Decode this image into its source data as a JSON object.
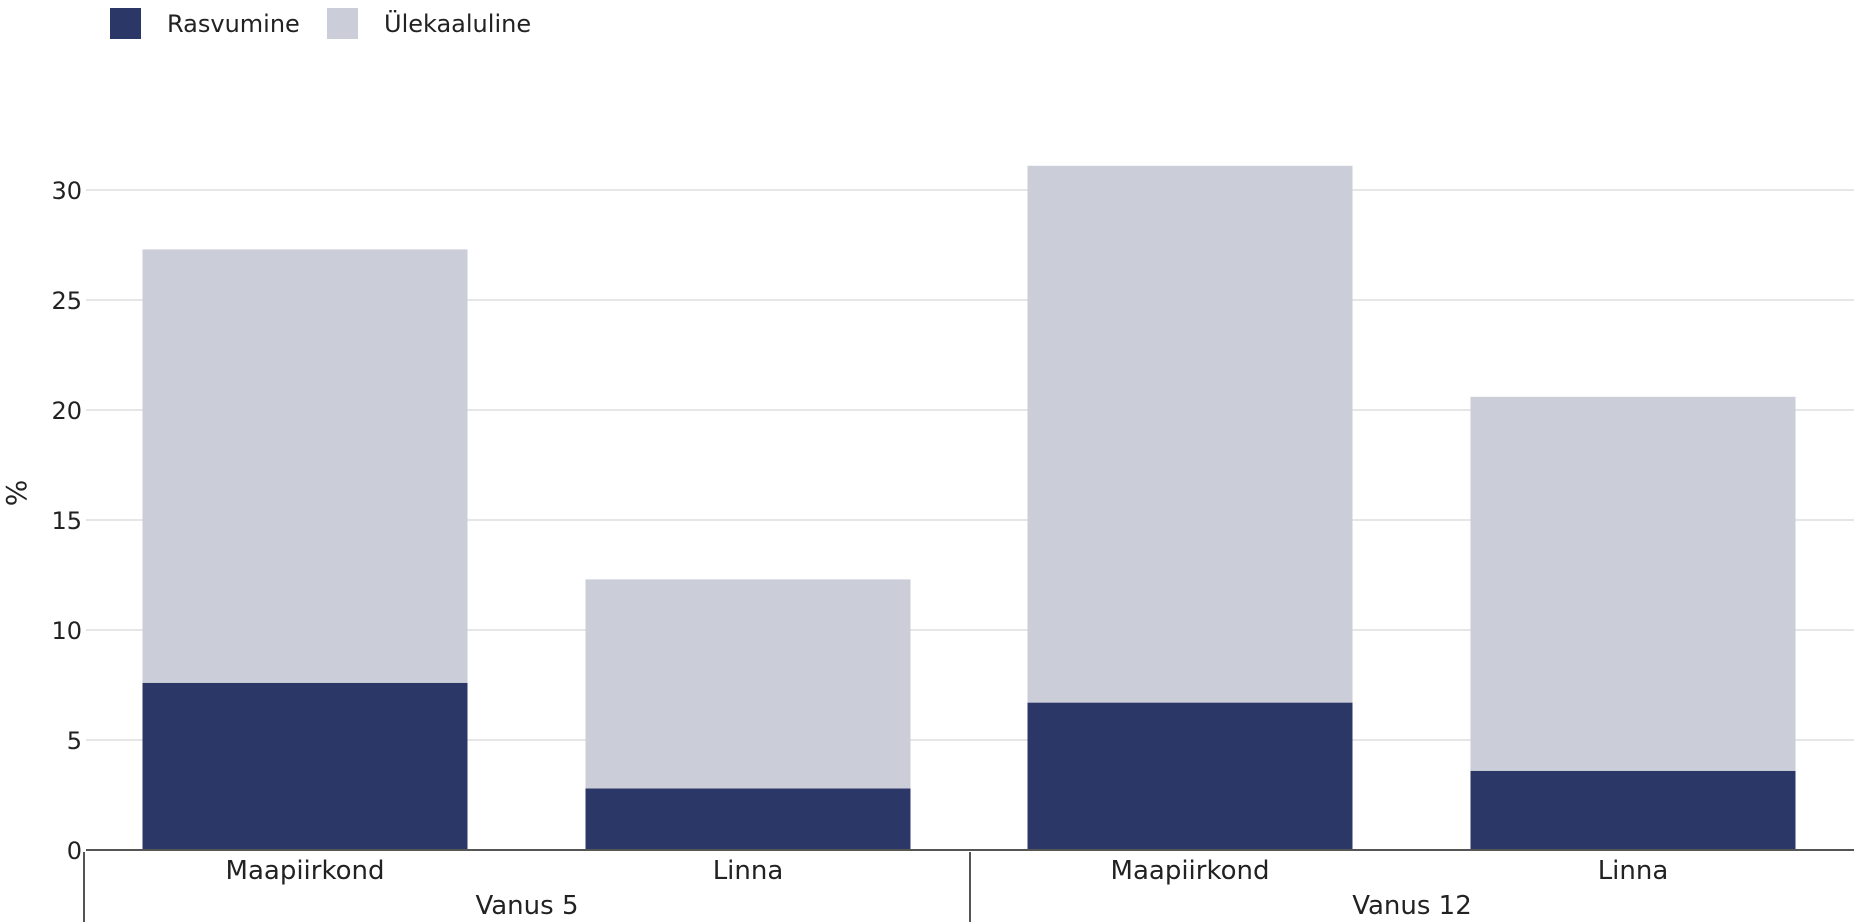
{
  "chart_data": {
    "type": "bar",
    "stacked": true,
    "groups": [
      {
        "label": "Vanus 5",
        "categories": [
          "Maapiirkond",
          "Linna"
        ]
      },
      {
        "label": "Vanus 12",
        "categories": [
          "Maapiirkond",
          "Linna"
        ]
      }
    ],
    "categories": [
      "Maapiirkond",
      "Linna",
      "Maapiirkond",
      "Linna"
    ],
    "series": [
      {
        "name": "Rasvumine",
        "color": "#2b3766",
        "values": [
          7.6,
          2.8,
          6.7,
          3.6
        ]
      },
      {
        "name": "Ülekaaluline",
        "color": "#cbcdd9",
        "values": [
          19.7,
          9.5,
          24.4,
          17.0
        ]
      }
    ],
    "ylabel": "%",
    "ylim": [
      0,
      32
    ],
    "yticks": [
      0,
      5,
      10,
      15,
      20,
      25,
      30
    ],
    "grid": true,
    "legend_position": "top-left"
  }
}
